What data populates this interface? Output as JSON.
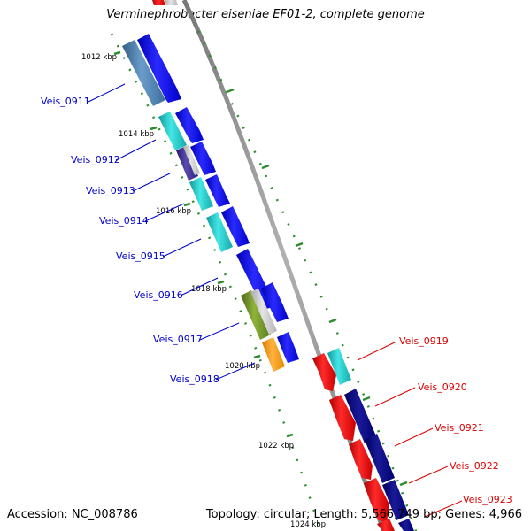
{
  "title": "Verminephrobacter eiseniae EF01-2, complete genome",
  "accession": "Accession: NC_008786",
  "topology": "Topology: circular; Length: 5,566,749 bp; Genes: 4,966",
  "colors": {
    "backbone": "#8c8c8c",
    "tick": "#2e8b2e",
    "forward_label": "#0000cc",
    "reverse_label": "#dd0000",
    "cds_forward": "#0000ee",
    "cds_reverse": "#ee0000",
    "feature_steelblue": "#4a7fb0",
    "feature_cyan": "#22cccc",
    "feature_navy": "#00007a",
    "feature_olive": "#6b8e23",
    "feature_orange": "#ff9900",
    "feature_purple": "#3a2a8a",
    "feature_gray": "#c8c8c8"
  },
  "kbp_labels": [
    "1012 kbp",
    "1014 kbp",
    "1016 kbp",
    "1018 kbp",
    "1020 kbp",
    "1022 kbp",
    "1024 kbp"
  ],
  "genes_forward": [
    "Veis_0911",
    "Veis_0912",
    "Veis_0913",
    "Veis_0914",
    "Veis_0915",
    "Veis_0916",
    "Veis_0917",
    "Veis_0918"
  ],
  "genes_reverse": [
    "Veis_0919",
    "Veis_0920",
    "Veis_0921",
    "Veis_0922",
    "Veis_0923"
  ]
}
